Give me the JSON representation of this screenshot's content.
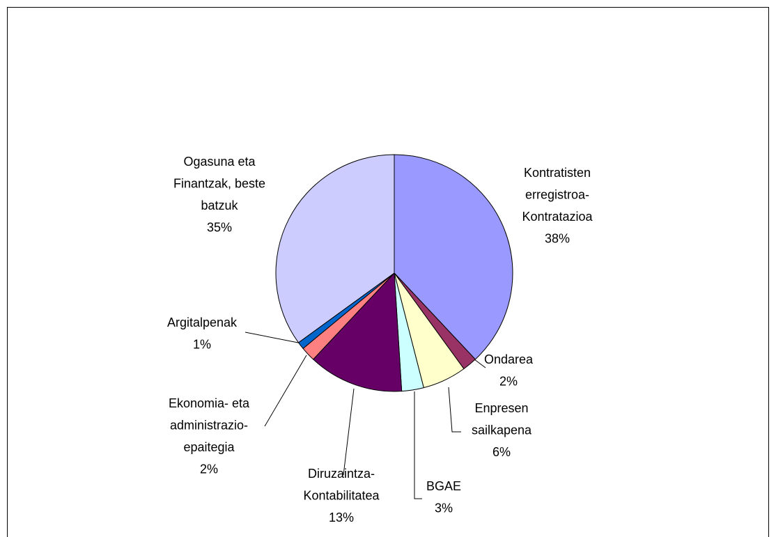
{
  "chart_data": {
    "type": "pie",
    "categories": [
      [
        "Kontratisten",
        "erregistroa-",
        "Kontratazioa"
      ],
      [
        "Ondarea"
      ],
      [
        "Enpresen",
        "sailkapena"
      ],
      [
        "BGAE"
      ],
      [
        "Diruzaintza-",
        "Kontabilitatea"
      ],
      [
        "Ekonomia- eta",
        "administrazio-",
        "epaitegia"
      ],
      [
        "Argitalpenak"
      ],
      [
        "Ogasuna eta",
        "Finantzak, beste",
        "batzuk"
      ]
    ],
    "values": [
      38,
      2,
      6,
      3,
      13,
      2,
      1,
      35
    ],
    "value_labels": [
      "38%",
      "2%",
      "6%",
      "3%",
      "13%",
      "2%",
      "1%",
      "35%"
    ],
    "colors": [
      "#9999ff",
      "#993366",
      "#ffffcc",
      "#ccffff",
      "#660066",
      "#ff8080",
      "#0066cc",
      "#ccccff"
    ]
  }
}
